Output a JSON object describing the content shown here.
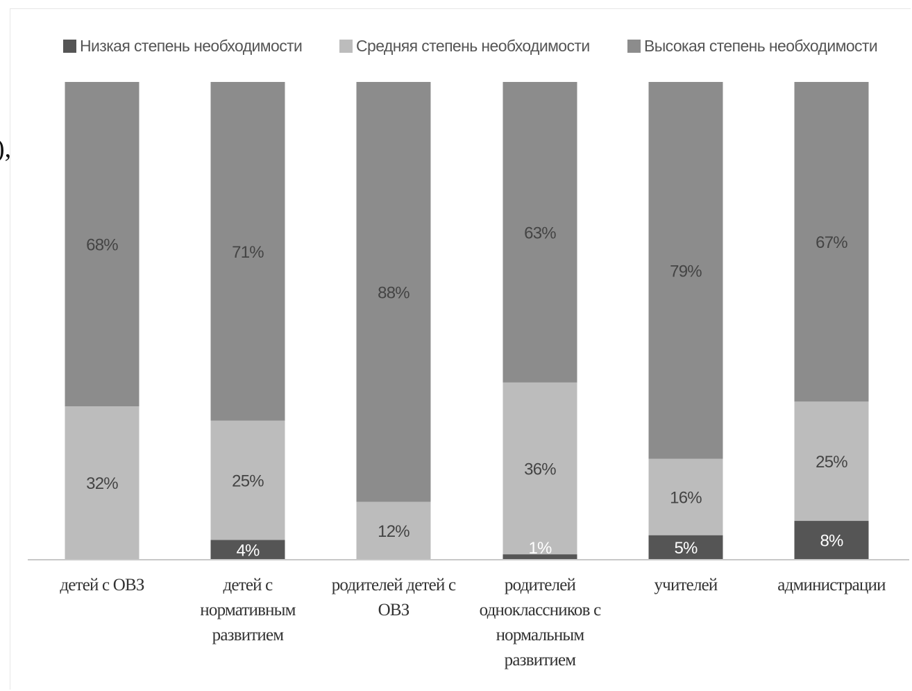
{
  "chart_data": {
    "type": "bar",
    "stacked": true,
    "percent": true,
    "title": "",
    "xlabel": "",
    "ylabel": "",
    "ylim": [
      0,
      100
    ],
    "grid": false,
    "legend_position": "top",
    "categories": [
      "детей с ОВЗ",
      "детей с нормативным развитием",
      "родителей детей с ОВЗ",
      "родителей одноклассников с нормальным развитием",
      "учителей",
      "администрации"
    ],
    "series": [
      {
        "name": "Низкая степень необходимости",
        "color": "#555555",
        "values": [
          0,
          4,
          0,
          1,
          5,
          8
        ],
        "labels": [
          "",
          "4%",
          "",
          "",
          "5%",
          "8%"
        ]
      },
      {
        "name": "Средняя степень необходимости",
        "color": "#bcbcbc",
        "values": [
          32,
          25,
          12,
          36,
          16,
          25
        ],
        "labels": [
          "32%",
          "25%",
          "12%",
          "36%",
          "16%",
          "25%"
        ]
      },
      {
        "name": "Высокая степень необходимости",
        "color": "#8c8c8c",
        "values": [
          68,
          71,
          88,
          63,
          79,
          67
        ],
        "labels": [
          "68%",
          "71%",
          "88%",
          "63%",
          "79%",
          "67%"
        ]
      }
    ],
    "extra_labels": [
      {
        "category_index": 3,
        "text": "1%"
      }
    ]
  }
}
